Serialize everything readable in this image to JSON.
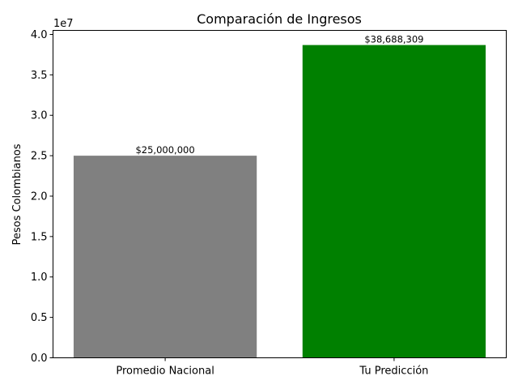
{
  "chart_data": {
    "type": "bar",
    "title": "Comparación de Ingresos",
    "xlabel": "",
    "ylabel": "Pesos Colombianos",
    "scale_label": "1e7",
    "categories": [
      "Promedio Nacional",
      "Tu Predicción"
    ],
    "values": [
      25000000,
      38688309
    ],
    "data_labels": [
      "$25,000,000",
      "$38,688,309"
    ],
    "colors": [
      "#808080",
      "#008000"
    ],
    "ylim": [
      0,
      40500000
    ],
    "yticks": [
      0,
      5000000,
      10000000,
      15000000,
      20000000,
      25000000,
      30000000,
      35000000,
      40000000
    ],
    "ytick_labels": [
      "0.0",
      "0.5",
      "1.0",
      "1.5",
      "2.0",
      "2.5",
      "3.0",
      "3.5",
      "4.0"
    ],
    "grid": false,
    "legend": "none"
  }
}
